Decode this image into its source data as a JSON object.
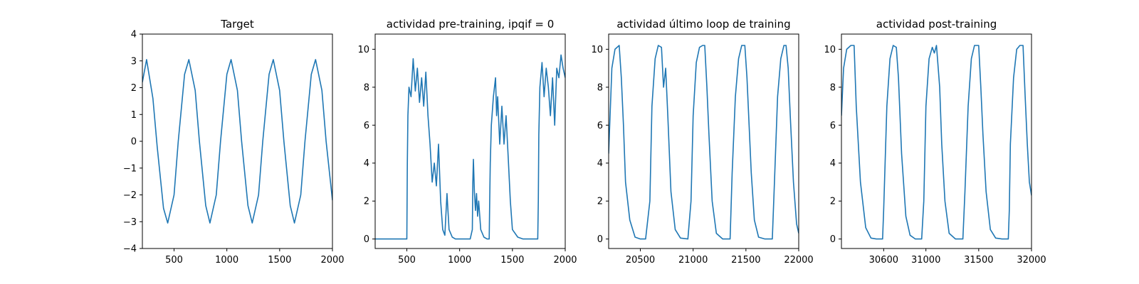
{
  "colors": {
    "line": "#1f77b4",
    "axis": "#000000",
    "background": "#ffffff"
  },
  "chart_data": [
    {
      "type": "line",
      "title": "Target",
      "xlim": [
        200,
        2000
      ],
      "ylim": [
        -4,
        4
      ],
      "xticks": [
        500,
        1000,
        1500,
        2000
      ],
      "yticks": [
        -4,
        -3,
        -2,
        -1,
        0,
        1,
        2,
        3,
        4
      ],
      "x": [
        200,
        240,
        300,
        340,
        400,
        440,
        500,
        540,
        600,
        640,
        700,
        740,
        800,
        840,
        900,
        940,
        1000,
        1040,
        1100,
        1140,
        1200,
        1240,
        1300,
        1340,
        1400,
        1440,
        1500,
        1540,
        1600,
        1640,
        1700,
        1740,
        1800,
        1840,
        1900,
        1940,
        2000
      ],
      "series": [
        {
          "values": [
            2.2,
            3.05,
            1.6,
            -0.2,
            -2.5,
            -3.05,
            -2.0,
            0.0,
            2.5,
            3.05,
            1.9,
            0.0,
            -2.4,
            -3.05,
            -2.0,
            0.0,
            2.5,
            3.05,
            1.9,
            0.0,
            -2.4,
            -3.05,
            -2.0,
            0.0,
            2.5,
            3.05,
            1.9,
            0.0,
            -2.4,
            -3.05,
            -2.0,
            0.0,
            2.5,
            3.05,
            1.9,
            0.0,
            -2.2
          ]
        }
      ]
    },
    {
      "type": "line",
      "title": "actividad pre-training, ipqif = 0",
      "xlim": [
        200,
        2000
      ],
      "ylim": [
        -0.5,
        10.8
      ],
      "xticks": [
        500,
        1000,
        1500,
        2000
      ],
      "yticks": [
        0,
        2,
        4,
        6,
        8,
        10
      ],
      "x": [
        200,
        500,
        505,
        510,
        520,
        540,
        560,
        580,
        600,
        620,
        640,
        660,
        680,
        700,
        720,
        740,
        760,
        780,
        800,
        820,
        840,
        860,
        880,
        900,
        930,
        960,
        1000,
        1050,
        1100,
        1120,
        1125,
        1130,
        1140,
        1150,
        1160,
        1170,
        1180,
        1200,
        1230,
        1260,
        1280,
        1285,
        1290,
        1300,
        1320,
        1340,
        1350,
        1360,
        1380,
        1400,
        1420,
        1440,
        1460,
        1480,
        1500,
        1550,
        1600,
        1650,
        1700,
        1740,
        1745,
        1750,
        1760,
        1780,
        1800,
        1820,
        1840,
        1860,
        1880,
        1900,
        1920,
        1940,
        1960,
        1980,
        2000
      ],
      "series": [
        {
          "values": [
            0,
            0,
            4.0,
            6.5,
            8.0,
            7.5,
            9.5,
            7.8,
            9.0,
            7.2,
            8.5,
            7.0,
            8.8,
            6.5,
            5.0,
            3.0,
            4.0,
            2.8,
            5.0,
            2.0,
            0.5,
            0.2,
            2.4,
            0.5,
            0.1,
            0,
            0,
            0,
            0,
            0.5,
            3.0,
            4.2,
            2.5,
            1.5,
            2.4,
            1.2,
            2.0,
            0.5,
            0.1,
            0,
            0,
            2.0,
            4.0,
            6.0,
            7.5,
            8.5,
            6.5,
            7.5,
            5.0,
            7.0,
            5.0,
            6.5,
            4.3,
            2.0,
            0.5,
            0.1,
            0,
            0,
            0,
            0,
            2.0,
            5.5,
            8.0,
            9.3,
            7.5,
            9.0,
            8.0,
            6.5,
            8.5,
            6.0,
            9.0,
            8.5,
            9.7,
            9.0,
            8.5
          ]
        }
      ]
    },
    {
      "type": "line",
      "title": "actividad último loop de training",
      "xlim": [
        20200,
        22000
      ],
      "ylim": [
        -0.5,
        10.8
      ],
      "xticks": [
        20500,
        21000,
        21500,
        22000
      ],
      "yticks": [
        0,
        2,
        4,
        6,
        8,
        10
      ],
      "x": [
        20200,
        20230,
        20260,
        20300,
        20320,
        20340,
        20360,
        20400,
        20450,
        20500,
        20550,
        20590,
        20610,
        20640,
        20670,
        20700,
        20720,
        20740,
        20760,
        20790,
        20830,
        20880,
        20950,
        20980,
        21000,
        21030,
        21060,
        21090,
        21110,
        21130,
        21150,
        21180,
        21220,
        21280,
        21350,
        21370,
        21400,
        21430,
        21460,
        21490,
        21510,
        21530,
        21550,
        21580,
        21620,
        21680,
        21750,
        21770,
        21800,
        21830,
        21860,
        21880,
        21900,
        21920,
        21950,
        21980,
        22000
      ],
      "series": [
        {
          "values": [
            4.5,
            9.0,
            10.0,
            10.2,
            8.5,
            6.0,
            3.0,
            1.0,
            0.1,
            0,
            0,
            2.0,
            7.0,
            9.5,
            10.2,
            10.1,
            8.0,
            9.0,
            6.5,
            2.5,
            0.5,
            0.05,
            0,
            2.0,
            6.5,
            9.3,
            10.1,
            10.2,
            10.2,
            8.0,
            5.5,
            2.0,
            0.3,
            0,
            0,
            3.5,
            7.5,
            9.5,
            10.2,
            10.2,
            8.5,
            6.0,
            3.5,
            1.0,
            0.1,
            0,
            0,
            3.0,
            7.5,
            9.5,
            10.2,
            10.2,
            9.0,
            6.5,
            3.0,
            0.8,
            0.3
          ]
        }
      ]
    },
    {
      "type": "line",
      "title": "actividad post-training",
      "xlim": [
        30200,
        32000
      ],
      "ylim": [
        -0.5,
        10.8
      ],
      "xticks": [
        30600,
        31000,
        31500,
        32000
      ],
      "yticks": [
        0,
        2,
        4,
        6,
        8,
        10
      ],
      "x": [
        30200,
        30220,
        30250,
        30290,
        30320,
        30340,
        30380,
        30430,
        30480,
        30530,
        30580,
        30590,
        30600,
        30630,
        30660,
        30690,
        30720,
        30740,
        30770,
        30810,
        30850,
        30900,
        30960,
        30980,
        31000,
        31030,
        31060,
        31080,
        31100,
        31130,
        31150,
        31180,
        31220,
        31280,
        31350,
        31370,
        31400,
        31430,
        31460,
        31500,
        31520,
        31540,
        31570,
        31610,
        31660,
        31720,
        31780,
        31790,
        31800,
        31830,
        31860,
        31890,
        31920,
        31940,
        31960,
        31980,
        32000
      ],
      "series": [
        {
          "values": [
            6.5,
            9.0,
            10.0,
            10.2,
            10.2,
            7.0,
            3.0,
            0.6,
            0.05,
            0,
            0,
            0.0,
            1.5,
            7.0,
            9.5,
            10.2,
            10.1,
            8.5,
            4.5,
            1.2,
            0.2,
            0,
            0,
            2.0,
            7.0,
            9.5,
            10.1,
            9.8,
            10.2,
            8.0,
            5.0,
            2.0,
            0.3,
            0,
            0,
            2.5,
            7.0,
            9.5,
            10.2,
            10.2,
            8.0,
            5.5,
            2.5,
            0.5,
            0.05,
            0,
            0,
            1.5,
            5.0,
            8.5,
            10.0,
            10.2,
            10.2,
            7.5,
            5.0,
            3.0,
            2.3
          ]
        }
      ]
    }
  ]
}
